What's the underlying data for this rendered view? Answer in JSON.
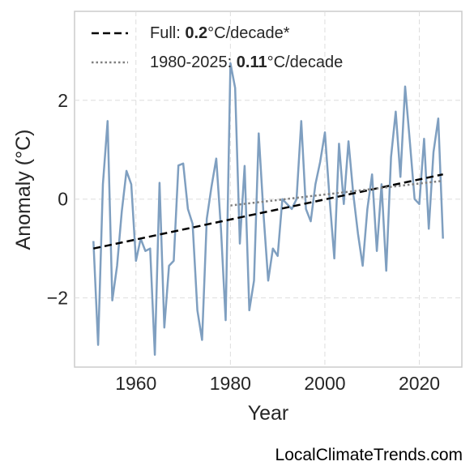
{
  "chart_data": {
    "type": "line",
    "xlabel": "Year",
    "ylabel": "Anomaly (°C)",
    "xlim": [
      1947,
      2029
    ],
    "ylim": [
      -3.4,
      3.8
    ],
    "xticks": [
      1960,
      1980,
      2000,
      2020
    ],
    "yticks": [
      -2,
      0,
      2
    ],
    "ytick_labels": [
      "−2",
      "0",
      "2"
    ],
    "grid": true,
    "legend_position": "top-left",
    "series": [
      {
        "x": [
          1951,
          1952,
          1953,
          1954,
          1955,
          1956,
          1957,
          1958,
          1959,
          1960,
          1961,
          1962,
          1963,
          1964,
          1965,
          1966,
          1967,
          1968,
          1969,
          1970,
          1971,
          1972,
          1973,
          1974,
          1975,
          1976,
          1977,
          1978,
          1979,
          1980,
          1981,
          1982,
          1983,
          1984,
          1985,
          1986,
          1987,
          1988,
          1989,
          1990,
          1991,
          1992,
          1993,
          1994,
          1995,
          1996,
          1997,
          1998,
          1999,
          2000,
          2001,
          2002,
          2003,
          2004,
          2005,
          2006,
          2007,
          2008,
          2009,
          2010,
          2011,
          2012,
          2013,
          2014,
          2015,
          2016,
          2017,
          2018,
          2019,
          2020,
          2021,
          2022,
          2023,
          2024,
          2025
        ],
        "values": [
          -0.85,
          -2.95,
          0.3,
          1.58,
          -2.05,
          -1.35,
          -0.25,
          0.57,
          0.3,
          -1.25,
          -0.8,
          -1.05,
          -1.0,
          -3.15,
          0.33,
          -2.6,
          -1.35,
          -1.25,
          0.68,
          0.72,
          -0.2,
          -0.5,
          -2.25,
          -2.85,
          -0.4,
          0.25,
          0.82,
          -0.6,
          -2.45,
          2.75,
          2.25,
          -0.9,
          0.67,
          -2.25,
          -1.65,
          1.33,
          -0.3,
          -1.65,
          -1.0,
          -1.15,
          0.0,
          -0.1,
          -0.2,
          0.0,
          1.58,
          -0.2,
          -0.45,
          0.3,
          0.75,
          1.35,
          0.0,
          -1.2,
          1.12,
          -0.1,
          1.17,
          0.12,
          -0.7,
          -1.35,
          -0.2,
          0.5,
          -1.05,
          0.3,
          -1.45,
          0.85,
          1.77,
          0.45,
          2.28,
          1.15,
          0.0,
          -0.1,
          1.22,
          -0.6,
          0.95,
          1.63,
          -0.8
        ],
        "color": "#7f9fc0"
      },
      {
        "name": "Full: 0.2°C/decade*",
        "x": [
          1951,
          2025
        ],
        "values": [
          -1.0,
          0.5
        ],
        "color": "#000000",
        "style": "dashed"
      },
      {
        "name": "1980-2025: 0.11°C/decade",
        "x": [
          1980,
          2025
        ],
        "values": [
          -0.13,
          0.37
        ],
        "color": "#808080",
        "style": "dotted"
      }
    ],
    "legend": [
      {
        "prefix": "Full: ",
        "value": "0.2",
        "suffix": "°C/decade*"
      },
      {
        "prefix": "1980-2025: ",
        "value": "0.11",
        "suffix": "°C/decade"
      }
    ]
  },
  "watermark": "LocalClimateTrends.com"
}
